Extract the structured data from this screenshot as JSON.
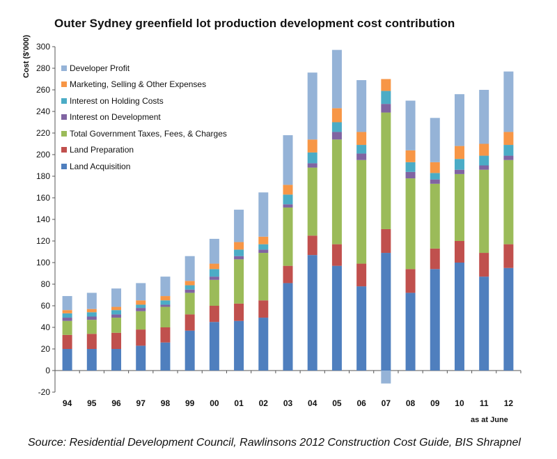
{
  "title": "Outer Sydney greenfield lot production development cost contribution",
  "source": "Source: Residential Development Council, Rawlinsons 2012 Construction Cost Guide, BIS Shrapnel",
  "chart_data": {
    "type": "bar",
    "stacked": true,
    "title": "Outer Sydney greenfield lot production development cost contribution",
    "ylabel": "Cost ($'000)",
    "xlabel": "as at June",
    "ylim": [
      -20,
      300
    ],
    "yticks": [
      -20,
      0,
      20,
      40,
      60,
      80,
      100,
      120,
      140,
      160,
      180,
      200,
      220,
      240,
      260,
      280,
      300
    ],
    "grid": false,
    "legend_position": "top-left",
    "categories": [
      "94",
      "95",
      "96",
      "97",
      "98",
      "99",
      "00",
      "01",
      "02",
      "03",
      "04",
      "05",
      "06",
      "07",
      "08",
      "09",
      "10",
      "11",
      "12"
    ],
    "series": [
      {
        "name": "Land Acquisition",
        "color": "#4f7fbe",
        "values": [
          20,
          20,
          20,
          23,
          26,
          37,
          45,
          46,
          49,
          81,
          107,
          97,
          78,
          109,
          72,
          94,
          100,
          87,
          95
        ]
      },
      {
        "name": "Land Preparation",
        "color": "#c0504d",
        "values": [
          13,
          14,
          15,
          15,
          14,
          15,
          15,
          16,
          16,
          16,
          18,
          20,
          21,
          22,
          22,
          19,
          20,
          22,
          22
        ]
      },
      {
        "name": "Total Government Taxes, Fees, & Charges",
        "color": "#9bbb59",
        "values": [
          13,
          13,
          14,
          17,
          19,
          20,
          24,
          41,
          44,
          54,
          63,
          97,
          96,
          108,
          84,
          60,
          62,
          77,
          78
        ]
      },
      {
        "name": "Interest on Development",
        "color": "#8064a2",
        "values": [
          3,
          3,
          3,
          3,
          2,
          3,
          3,
          3,
          3,
          3,
          4,
          7,
          6,
          8,
          6,
          4,
          4,
          4,
          4
        ]
      },
      {
        "name": "Interest on Holding Costs",
        "color": "#4bacc6",
        "values": [
          4,
          4,
          4,
          3,
          4,
          4,
          7,
          6,
          5,
          9,
          10,
          9,
          8,
          12,
          9,
          6,
          10,
          9,
          10
        ]
      },
      {
        "name": "Marketing, Selling & Other Expenses",
        "color": "#f79646",
        "values": [
          3,
          3,
          3,
          4,
          4,
          4,
          5,
          7,
          7,
          9,
          12,
          13,
          12,
          11,
          11,
          10,
          12,
          11,
          12
        ]
      },
      {
        "name": "Developer Profit",
        "color": "#95b3d7",
        "values": [
          13,
          15,
          17,
          16,
          18,
          23,
          23,
          30,
          41,
          46,
          62,
          54,
          48,
          -12,
          46,
          41,
          48,
          50,
          56
        ]
      }
    ]
  }
}
